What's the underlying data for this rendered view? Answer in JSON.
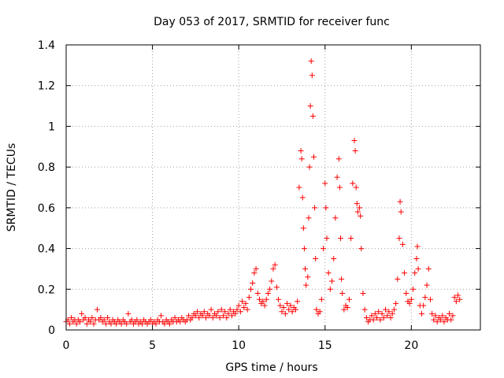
{
  "chart_data": {
    "type": "scatter",
    "title": "Day 053 of 2017, SRMTID for receiver func",
    "xlabel": "GPS time / hours",
    "ylabel": "SRMTID / TECUs",
    "xlim": [
      0,
      24
    ],
    "ylim": [
      0,
      1.4
    ],
    "xticks": [
      0,
      5,
      10,
      15,
      20
    ],
    "xtick_labels": [
      "0",
      "5",
      "10",
      "15",
      "20"
    ],
    "yticks": [
      0,
      0.2,
      0.4,
      0.6,
      0.8,
      1,
      1.2,
      1.4
    ],
    "ytick_labels": [
      "0",
      "0.2",
      "0.4",
      "0.6",
      "0.8",
      "1",
      "1.2",
      "1.4"
    ],
    "grid": true,
    "marker": "+",
    "marker_color": "#ff0000",
    "series": [
      {
        "name": "SRMTID",
        "color": "#ff0000",
        "points": [
          [
            0.0,
            0.04
          ],
          [
            0.1,
            0.05
          ],
          [
            0.2,
            0.03
          ],
          [
            0.3,
            0.06
          ],
          [
            0.4,
            0.04
          ],
          [
            0.5,
            0.05
          ],
          [
            0.6,
            0.03
          ],
          [
            0.7,
            0.05
          ],
          [
            0.8,
            0.04
          ],
          [
            0.9,
            0.08
          ],
          [
            1.0,
            0.05
          ],
          [
            1.1,
            0.06
          ],
          [
            1.2,
            0.03
          ],
          [
            1.3,
            0.05
          ],
          [
            1.4,
            0.04
          ],
          [
            1.5,
            0.06
          ],
          [
            1.6,
            0.03
          ],
          [
            1.7,
            0.05
          ],
          [
            1.8,
            0.1
          ],
          [
            1.9,
            0.05
          ],
          [
            2.0,
            0.06
          ],
          [
            2.1,
            0.04
          ],
          [
            2.2,
            0.05
          ],
          [
            2.3,
            0.03
          ],
          [
            2.4,
            0.06
          ],
          [
            2.5,
            0.04
          ],
          [
            2.6,
            0.03
          ],
          [
            2.7,
            0.05
          ],
          [
            2.8,
            0.04
          ],
          [
            2.9,
            0.03
          ],
          [
            3.0,
            0.05
          ],
          [
            3.1,
            0.04
          ],
          [
            3.2,
            0.03
          ],
          [
            3.3,
            0.05
          ],
          [
            3.4,
            0.04
          ],
          [
            3.5,
            0.03
          ],
          [
            3.6,
            0.08
          ],
          [
            3.7,
            0.04
          ],
          [
            3.8,
            0.05
          ],
          [
            3.9,
            0.03
          ],
          [
            4.0,
            0.04
          ],
          [
            4.1,
            0.05
          ],
          [
            4.2,
            0.03
          ],
          [
            4.3,
            0.04
          ],
          [
            4.4,
            0.03
          ],
          [
            4.5,
            0.05
          ],
          [
            4.6,
            0.04
          ],
          [
            4.7,
            0.03
          ],
          [
            4.8,
            0.04
          ],
          [
            4.9,
            0.05
          ],
          [
            5.0,
            0.03
          ],
          [
            5.1,
            0.04
          ],
          [
            5.2,
            0.03
          ],
          [
            5.3,
            0.05
          ],
          [
            5.4,
            0.04
          ],
          [
            5.5,
            0.07
          ],
          [
            5.6,
            0.04
          ],
          [
            5.7,
            0.03
          ],
          [
            5.8,
            0.05
          ],
          [
            5.9,
            0.04
          ],
          [
            6.0,
            0.03
          ],
          [
            6.1,
            0.05
          ],
          [
            6.2,
            0.04
          ],
          [
            6.3,
            0.06
          ],
          [
            6.4,
            0.04
          ],
          [
            6.5,
            0.05
          ],
          [
            6.6,
            0.04
          ],
          [
            6.7,
            0.06
          ],
          [
            6.8,
            0.05
          ],
          [
            6.9,
            0.04
          ],
          [
            7.0,
            0.05
          ],
          [
            7.1,
            0.07
          ],
          [
            7.2,
            0.05
          ],
          [
            7.3,
            0.06
          ],
          [
            7.4,
            0.08
          ],
          [
            7.5,
            0.07
          ],
          [
            7.6,
            0.09
          ],
          [
            7.7,
            0.06
          ],
          [
            7.8,
            0.08
          ],
          [
            7.9,
            0.07
          ],
          [
            8.0,
            0.09
          ],
          [
            8.1,
            0.06
          ],
          [
            8.2,
            0.08
          ],
          [
            8.3,
            0.07
          ],
          [
            8.4,
            0.1
          ],
          [
            8.5,
            0.06
          ],
          [
            8.6,
            0.08
          ],
          [
            8.7,
            0.07
          ],
          [
            8.8,
            0.09
          ],
          [
            8.9,
            0.06
          ],
          [
            9.0,
            0.1
          ],
          [
            9.1,
            0.07
          ],
          [
            9.2,
            0.09
          ],
          [
            9.3,
            0.06
          ],
          [
            9.4,
            0.08
          ],
          [
            9.5,
            0.1
          ],
          [
            9.6,
            0.07
          ],
          [
            9.7,
            0.09
          ],
          [
            9.8,
            0.08
          ],
          [
            9.9,
            0.1
          ],
          [
            10.0,
            0.12
          ],
          [
            10.1,
            0.09
          ],
          [
            10.2,
            0.14
          ],
          [
            10.3,
            0.11
          ],
          [
            10.4,
            0.13
          ],
          [
            10.5,
            0.1
          ],
          [
            10.6,
            0.16
          ],
          [
            10.7,
            0.2
          ],
          [
            10.8,
            0.23
          ],
          [
            10.9,
            0.28
          ],
          [
            11.0,
            0.3
          ],
          [
            11.1,
            0.18
          ],
          [
            11.2,
            0.15
          ],
          [
            11.3,
            0.13
          ],
          [
            11.4,
            0.14
          ],
          [
            11.5,
            0.12
          ],
          [
            11.6,
            0.15
          ],
          [
            11.7,
            0.18
          ],
          [
            11.8,
            0.2
          ],
          [
            11.9,
            0.24
          ],
          [
            12.0,
            0.3
          ],
          [
            12.1,
            0.32
          ],
          [
            12.2,
            0.21
          ],
          [
            12.3,
            0.15
          ],
          [
            12.4,
            0.12
          ],
          [
            12.5,
            0.09
          ],
          [
            12.6,
            0.11
          ],
          [
            12.7,
            0.08
          ],
          [
            12.8,
            0.13
          ],
          [
            12.9,
            0.1
          ],
          [
            13.0,
            0.12
          ],
          [
            13.1,
            0.09
          ],
          [
            13.2,
            0.11
          ],
          [
            13.3,
            0.1
          ],
          [
            13.4,
            0.14
          ],
          [
            13.5,
            0.7
          ],
          [
            13.6,
            0.88
          ],
          [
            13.65,
            0.84
          ],
          [
            13.7,
            0.65
          ],
          [
            13.75,
            0.5
          ],
          [
            13.8,
            0.4
          ],
          [
            13.85,
            0.3
          ],
          [
            13.9,
            0.22
          ],
          [
            14.0,
            0.26
          ],
          [
            14.05,
            0.55
          ],
          [
            14.1,
            0.8
          ],
          [
            14.15,
            1.1
          ],
          [
            14.2,
            1.32
          ],
          [
            14.25,
            1.25
          ],
          [
            14.3,
            1.05
          ],
          [
            14.35,
            0.85
          ],
          [
            14.4,
            0.6
          ],
          [
            14.45,
            0.35
          ],
          [
            14.5,
            0.1
          ],
          [
            14.6,
            0.08
          ],
          [
            14.7,
            0.09
          ],
          [
            14.8,
            0.15
          ],
          [
            14.9,
            0.4
          ],
          [
            15.0,
            0.72
          ],
          [
            15.05,
            0.6
          ],
          [
            15.1,
            0.45
          ],
          [
            15.2,
            0.28
          ],
          [
            15.3,
            0.2
          ],
          [
            15.4,
            0.24
          ],
          [
            15.5,
            0.35
          ],
          [
            15.6,
            0.55
          ],
          [
            15.7,
            0.75
          ],
          [
            15.8,
            0.84
          ],
          [
            15.85,
            0.7
          ],
          [
            15.9,
            0.45
          ],
          [
            15.95,
            0.25
          ],
          [
            16.0,
            0.18
          ],
          [
            16.1,
            0.1
          ],
          [
            16.2,
            0.12
          ],
          [
            16.3,
            0.11
          ],
          [
            16.4,
            0.15
          ],
          [
            16.5,
            0.45
          ],
          [
            16.6,
            0.72
          ],
          [
            16.7,
            0.93
          ],
          [
            16.75,
            0.88
          ],
          [
            16.8,
            0.7
          ],
          [
            16.85,
            0.62
          ],
          [
            16.9,
            0.58
          ],
          [
            17.0,
            0.6
          ],
          [
            17.05,
            0.56
          ],
          [
            17.1,
            0.4
          ],
          [
            17.2,
            0.18
          ],
          [
            17.3,
            0.1
          ],
          [
            17.4,
            0.06
          ],
          [
            17.5,
            0.04
          ],
          [
            17.6,
            0.05
          ],
          [
            17.7,
            0.07
          ],
          [
            17.8,
            0.05
          ],
          [
            17.9,
            0.08
          ],
          [
            18.0,
            0.06
          ],
          [
            18.1,
            0.09
          ],
          [
            18.2,
            0.05
          ],
          [
            18.3,
            0.08
          ],
          [
            18.4,
            0.06
          ],
          [
            18.5,
            0.1
          ],
          [
            18.6,
            0.07
          ],
          [
            18.7,
            0.09
          ],
          [
            18.8,
            0.06
          ],
          [
            18.9,
            0.08
          ],
          [
            19.0,
            0.1
          ],
          [
            19.1,
            0.13
          ],
          [
            19.2,
            0.25
          ],
          [
            19.3,
            0.45
          ],
          [
            19.35,
            0.63
          ],
          [
            19.4,
            0.58
          ],
          [
            19.5,
            0.42
          ],
          [
            19.6,
            0.28
          ],
          [
            19.7,
            0.18
          ],
          [
            19.8,
            0.14
          ],
          [
            19.9,
            0.13
          ],
          [
            20.0,
            0.15
          ],
          [
            20.1,
            0.2
          ],
          [
            20.2,
            0.28
          ],
          [
            20.3,
            0.35
          ],
          [
            20.35,
            0.41
          ],
          [
            20.4,
            0.3
          ],
          [
            20.5,
            0.12
          ],
          [
            20.6,
            0.08
          ],
          [
            20.7,
            0.12
          ],
          [
            20.8,
            0.16
          ],
          [
            20.9,
            0.22
          ],
          [
            21.0,
            0.3
          ],
          [
            21.1,
            0.15
          ],
          [
            21.2,
            0.08
          ],
          [
            21.3,
            0.05
          ],
          [
            21.4,
            0.07
          ],
          [
            21.5,
            0.04
          ],
          [
            21.6,
            0.06
          ],
          [
            21.7,
            0.05
          ],
          [
            21.8,
            0.07
          ],
          [
            21.9,
            0.04
          ],
          [
            22.0,
            0.06
          ],
          [
            22.1,
            0.05
          ],
          [
            22.2,
            0.08
          ],
          [
            22.3,
            0.05
          ],
          [
            22.4,
            0.07
          ],
          [
            22.5,
            0.16
          ],
          [
            22.6,
            0.14
          ],
          [
            22.7,
            0.17
          ],
          [
            22.8,
            0.15
          ]
        ]
      }
    ]
  }
}
